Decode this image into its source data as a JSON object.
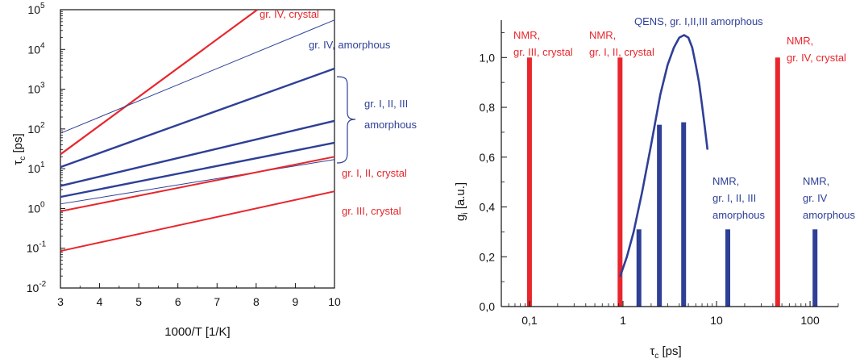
{
  "colors": {
    "red": "#e8262c",
    "blue": "#2e3f97",
    "axis": "#111111"
  },
  "chart_data": [
    {
      "type": "line",
      "xlabel": "1000/T [1/K]",
      "ylabel_main": "τ",
      "ylabel_sub": "c",
      "ylabel_unit": " [ps]",
      "xlim": [
        3,
        10
      ],
      "ylim": [
        0.01,
        100000
      ],
      "yscale": "log",
      "xticks": [
        "3",
        "4",
        "5",
        "6",
        "7",
        "8",
        "9",
        "10"
      ],
      "yticks": [
        {
          "base": "10",
          "exp": "-2"
        },
        {
          "base": "10",
          "exp": "-1"
        },
        {
          "base": "10",
          "exp": "0"
        },
        {
          "base": "10",
          "exp": "1"
        },
        {
          "base": "10",
          "exp": "2"
        },
        {
          "base": "10",
          "exp": "3"
        },
        {
          "base": "10",
          "exp": "4"
        },
        {
          "base": "10",
          "exp": "5"
        }
      ],
      "series": [
        {
          "color": "red",
          "width": 2.2,
          "x": [
            3,
            8.03
          ],
          "y": [
            23,
            100000
          ]
        },
        {
          "color": "blue",
          "width": 1,
          "x": [
            3,
            10
          ],
          "y": [
            78,
            55000
          ]
        },
        {
          "color": "blue",
          "width": 2.4,
          "x": [
            3,
            10
          ],
          "y": [
            11,
            3300
          ]
        },
        {
          "color": "blue",
          "width": 2.4,
          "x": [
            3,
            10
          ],
          "y": [
            3.7,
            160
          ]
        },
        {
          "color": "blue",
          "width": 2.4,
          "x": [
            3,
            10
          ],
          "y": [
            1.95,
            45
          ]
        },
        {
          "color": "blue",
          "width": 1,
          "x": [
            3,
            10
          ],
          "y": [
            1.3,
            17
          ]
        },
        {
          "color": "red",
          "width": 2,
          "x": [
            3,
            10
          ],
          "y": [
            0.85,
            20
          ]
        },
        {
          "color": "red",
          "width": 2,
          "x": [
            3,
            10
          ],
          "y": [
            0.085,
            2.7
          ]
        }
      ],
      "annotations": [
        {
          "text": "gr. IV, crystal",
          "color": "red"
        },
        {
          "text": "gr. IV, amorphous",
          "color": "blue"
        },
        {
          "text": "gr. I, II, III",
          "color": "blue"
        },
        {
          "text": "amorphous",
          "color": "blue"
        },
        {
          "text": "gr. I, II, crystal",
          "color": "red"
        },
        {
          "text": "gr. III, crystal",
          "color": "red"
        }
      ]
    },
    {
      "type": "bar",
      "xlabel_main": "τ",
      "xlabel_sub": "c",
      "xlabel_unit": " [ps]",
      "ylabel_main": "g",
      "ylabel_sub": "i",
      "ylabel_unit": " [a.u.]",
      "xscale": "log",
      "xlim": [
        0.05,
        200
      ],
      "ylim": [
        0,
        1.15
      ],
      "xticks": [
        {
          "v": 0.1,
          "label": "0,1"
        },
        {
          "v": 1,
          "label": "1"
        },
        {
          "v": 10,
          "label": "10"
        },
        {
          "v": 100,
          "label": "100"
        }
      ],
      "yticks": [
        {
          "v": 0,
          "label": "0,0"
        },
        {
          "v": 0.2,
          "label": "0,2"
        },
        {
          "v": 0.4,
          "label": "0,4"
        },
        {
          "v": 0.6,
          "label": "0,6"
        },
        {
          "v": 0.8,
          "label": "0,8"
        },
        {
          "v": 1.0,
          "label": "1,0"
        }
      ],
      "bars": [
        {
          "x": 0.1,
          "value": 1.0,
          "color": "red"
        },
        {
          "x": 0.93,
          "value": 1.0,
          "color": "red"
        },
        {
          "x": 45,
          "value": 1.0,
          "color": "red"
        },
        {
          "x": 1.48,
          "value": 0.31,
          "color": "blue"
        },
        {
          "x": 2.45,
          "value": 0.73,
          "color": "blue"
        },
        {
          "x": 4.45,
          "value": 0.74,
          "color": "blue"
        },
        {
          "x": 13.2,
          "value": 0.31,
          "color": "blue"
        },
        {
          "x": 113,
          "value": 0.31,
          "color": "blue"
        }
      ],
      "curve": {
        "color": "blue",
        "x": [
          0.93,
          1.1,
          1.3,
          1.6,
          2.0,
          2.5,
          3.0,
          3.5,
          4.0,
          4.5,
          5.0,
          5.5,
          6.0,
          6.5,
          7.0,
          7.5,
          8.0
        ],
        "y": [
          0.12,
          0.2,
          0.3,
          0.46,
          0.65,
          0.85,
          0.97,
          1.04,
          1.08,
          1.09,
          1.08,
          1.04,
          0.97,
          0.9,
          0.81,
          0.72,
          0.63
        ]
      },
      "annotations": [
        {
          "lines": [
            "NMR,",
            "gr. III, crystal"
          ],
          "color": "red"
        },
        {
          "lines": [
            "NMR,",
            "gr. I, II, crystal"
          ],
          "color": "red"
        },
        {
          "lines": [
            "QENS, gr. I,II,III amorphous"
          ],
          "color": "blue"
        },
        {
          "lines": [
            "NMR,",
            "gr. IV, crystal"
          ],
          "color": "red"
        },
        {
          "lines": [
            "NMR,",
            "gr. I, II, III",
            "amorphous"
          ],
          "color": "blue"
        },
        {
          "lines": [
            "NMR,",
            "gr. IV",
            "amorphous"
          ],
          "color": "blue"
        }
      ]
    }
  ]
}
